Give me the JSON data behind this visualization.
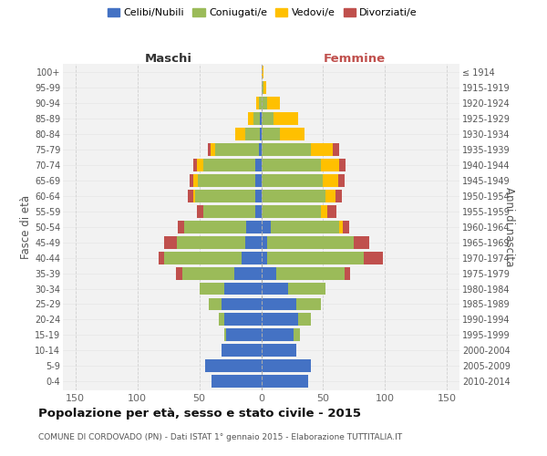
{
  "age_groups": [
    "0-4",
    "5-9",
    "10-14",
    "15-19",
    "20-24",
    "25-29",
    "30-34",
    "35-39",
    "40-44",
    "45-49",
    "50-54",
    "55-59",
    "60-64",
    "65-69",
    "70-74",
    "75-79",
    "80-84",
    "85-89",
    "90-94",
    "95-99",
    "100+"
  ],
  "birth_years": [
    "2010-2014",
    "2005-2009",
    "2000-2004",
    "1995-1999",
    "1990-1994",
    "1985-1989",
    "1980-1984",
    "1975-1979",
    "1970-1974",
    "1965-1969",
    "1960-1964",
    "1955-1959",
    "1950-1954",
    "1945-1949",
    "1940-1944",
    "1935-1939",
    "1930-1934",
    "1925-1929",
    "1920-1924",
    "1915-1919",
    "≤ 1914"
  ],
  "colors": {
    "celibi": "#4472C4",
    "coniugati": "#9BBB59",
    "vedovi": "#FFC000",
    "divorziati": "#C0504D"
  },
  "male": {
    "celibi": [
      40,
      45,
      32,
      28,
      30,
      32,
      30,
      22,
      16,
      13,
      12,
      5,
      5,
      5,
      5,
      2,
      1,
      1,
      0,
      0,
      0
    ],
    "coniugati": [
      0,
      0,
      0,
      2,
      4,
      10,
      20,
      42,
      62,
      55,
      50,
      42,
      48,
      46,
      42,
      35,
      12,
      5,
      2,
      0,
      0
    ],
    "vedovi": [
      0,
      0,
      0,
      0,
      0,
      0,
      0,
      0,
      0,
      0,
      0,
      0,
      2,
      4,
      5,
      4,
      8,
      5,
      2,
      0,
      0
    ],
    "divorziati": [
      0,
      0,
      0,
      0,
      0,
      0,
      0,
      5,
      5,
      10,
      5,
      5,
      4,
      3,
      3,
      2,
      0,
      0,
      0,
      0,
      0
    ]
  },
  "female": {
    "celibi": [
      38,
      40,
      28,
      26,
      30,
      28,
      22,
      12,
      5,
      5,
      8,
      0,
      0,
      0,
      0,
      0,
      0,
      0,
      0,
      0,
      0
    ],
    "coniugati": [
      0,
      0,
      0,
      5,
      10,
      20,
      30,
      55,
      78,
      70,
      55,
      48,
      52,
      50,
      48,
      40,
      15,
      10,
      5,
      2,
      0
    ],
    "vedovi": [
      0,
      0,
      0,
      0,
      0,
      0,
      0,
      0,
      0,
      0,
      3,
      5,
      8,
      12,
      15,
      18,
      20,
      20,
      10,
      2,
      2
    ],
    "divorziati": [
      0,
      0,
      0,
      0,
      0,
      0,
      0,
      5,
      15,
      12,
      5,
      8,
      5,
      5,
      5,
      5,
      0,
      0,
      0,
      0,
      0
    ]
  },
  "title": "Popolazione per età, sesso e stato civile - 2015",
  "subtitle": "COMUNE DI CORDOVADO (PN) - Dati ISTAT 1° gennaio 2015 - Elaborazione TUTTITALIA.IT",
  "xlabel_left": "Maschi",
  "xlabel_right": "Femmine",
  "ylabel_left": "Fasce di età",
  "ylabel_right": "Anni di nascita",
  "xlim": 160,
  "bg_color": "#f2f2f2",
  "grid_color": "#cccccc"
}
